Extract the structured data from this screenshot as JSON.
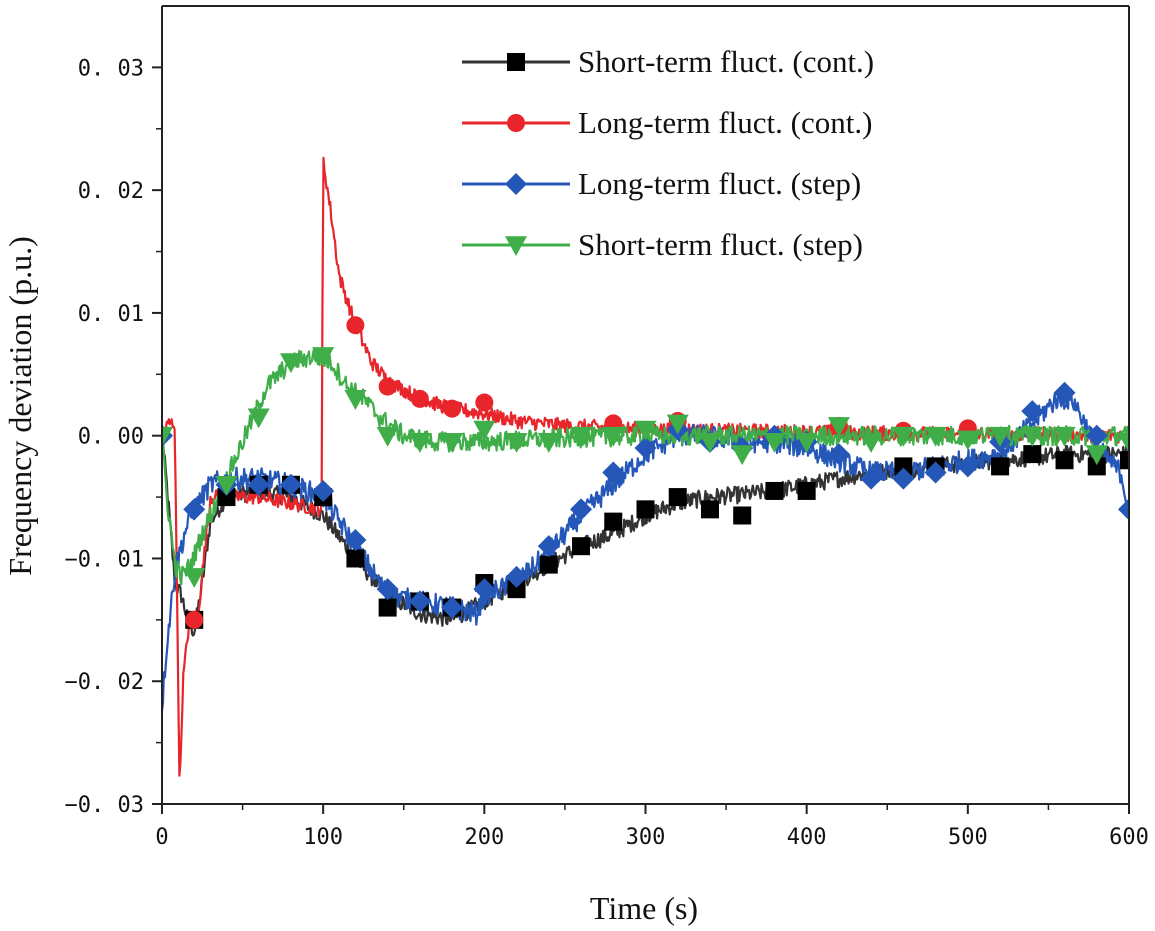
{
  "chart_data": {
    "type": "line",
    "title": "",
    "xlabel": "Time (s)",
    "ylabel": "Frequency deviation (p.u.)",
    "xlim": [
      0,
      600
    ],
    "ylim": [
      -0.03,
      0.035
    ],
    "xticks": [
      0,
      100,
      200,
      300,
      400,
      500,
      600
    ],
    "xtick_labels": [
      "0",
      "100",
      "200",
      "300",
      "400",
      "500",
      "600"
    ],
    "yticks": [
      -0.03,
      -0.02,
      -0.01,
      0.0,
      0.01,
      0.02,
      0.03
    ],
    "ytick_labels": [
      "−0. 03",
      "−0. 02",
      "−0. 01",
      "0. 00",
      "0. 01",
      "0. 02",
      "0. 03"
    ],
    "grid": false,
    "legend_position": "top-right",
    "series": [
      {
        "name": "Short-term fluct. (cont.)",
        "color": "#333333",
        "marker": "square",
        "noise": 0.0007,
        "line": [
          [
            0,
            0
          ],
          [
            3,
            -0.004
          ],
          [
            8,
            -0.012
          ],
          [
            12,
            -0.013
          ],
          [
            16,
            -0.015
          ],
          [
            20,
            -0.016
          ],
          [
            25,
            -0.012
          ],
          [
            30,
            -0.007
          ],
          [
            40,
            -0.005
          ],
          [
            60,
            -0.0045
          ],
          [
            80,
            -0.005
          ],
          [
            100,
            -0.0065
          ],
          [
            120,
            -0.01
          ],
          [
            140,
            -0.013
          ],
          [
            160,
            -0.0145
          ],
          [
            180,
            -0.015
          ],
          [
            200,
            -0.0135
          ],
          [
            220,
            -0.012
          ],
          [
            240,
            -0.0105
          ],
          [
            260,
            -0.009
          ],
          [
            280,
            -0.008
          ],
          [
            300,
            -0.0065
          ],
          [
            320,
            -0.0055
          ],
          [
            340,
            -0.005
          ],
          [
            360,
            -0.0048
          ],
          [
            380,
            -0.0045
          ],
          [
            400,
            -0.004
          ],
          [
            420,
            -0.0035
          ],
          [
            440,
            -0.003
          ],
          [
            460,
            -0.0028
          ],
          [
            480,
            -0.0025
          ],
          [
            500,
            -0.0022
          ],
          [
            520,
            -0.002
          ],
          [
            540,
            -0.0018
          ],
          [
            560,
            -0.0015
          ],
          [
            580,
            -0.0015
          ],
          [
            600,
            -0.0015
          ]
        ],
        "markers": [
          [
            20,
            -0.015
          ],
          [
            40,
            -0.005
          ],
          [
            60,
            -0.004
          ],
          [
            80,
            -0.004
          ],
          [
            100,
            -0.005
          ],
          [
            120,
            -0.01
          ],
          [
            140,
            -0.014
          ],
          [
            160,
            -0.0135
          ],
          [
            180,
            -0.014
          ],
          [
            200,
            -0.012
          ],
          [
            220,
            -0.0125
          ],
          [
            240,
            -0.0105
          ],
          [
            260,
            -0.009
          ],
          [
            280,
            -0.007
          ],
          [
            300,
            -0.006
          ],
          [
            320,
            -0.005
          ],
          [
            340,
            -0.006
          ],
          [
            360,
            -0.0065
          ],
          [
            380,
            -0.0045
          ],
          [
            400,
            -0.0045
          ],
          [
            460,
            -0.0025
          ],
          [
            480,
            -0.0025
          ],
          [
            520,
            -0.0025
          ],
          [
            540,
            -0.0015
          ],
          [
            560,
            -0.002
          ],
          [
            580,
            -0.0025
          ],
          [
            600,
            -0.002
          ]
        ]
      },
      {
        "name": "Long-term fluct. (cont.)",
        "color": "#e8252a",
        "marker": "circle",
        "noise": 0.0006,
        "line": [
          [
            0,
            0
          ],
          [
            4,
            0.001
          ],
          [
            8,
            0.001
          ],
          [
            9,
            -0.01
          ],
          [
            11,
            -0.029
          ],
          [
            13,
            -0.02
          ],
          [
            17,
            -0.015
          ],
          [
            22,
            -0.015
          ],
          [
            26,
            -0.01
          ],
          [
            30,
            -0.005
          ],
          [
            40,
            -0.005
          ],
          [
            60,
            -0.005
          ],
          [
            80,
            -0.0055
          ],
          [
            99,
            -0.006
          ],
          [
            100,
            0.0225
          ],
          [
            105,
            0.018
          ],
          [
            110,
            0.013
          ],
          [
            120,
            0.009
          ],
          [
            130,
            0.006
          ],
          [
            140,
            0.0045
          ],
          [
            160,
            0.003
          ],
          [
            180,
            0.0022
          ],
          [
            200,
            0.0018
          ],
          [
            220,
            0.0012
          ],
          [
            250,
            0.0008
          ],
          [
            300,
            0.0005
          ],
          [
            350,
            0.0004
          ],
          [
            400,
            0.0003
          ],
          [
            450,
            0.0002
          ],
          [
            500,
            0.0001
          ],
          [
            550,
            0.0001
          ],
          [
            600,
            0
          ]
        ],
        "markers": [
          [
            20,
            -0.015
          ],
          [
            120,
            0.009
          ],
          [
            140,
            0.004
          ],
          [
            160,
            0.003
          ],
          [
            180,
            0.0022
          ],
          [
            200,
            0.0027
          ],
          [
            280,
            0.001
          ],
          [
            320,
            0.0012
          ],
          [
            420,
            0.0008
          ],
          [
            460,
            0.0004
          ],
          [
            500,
            0.0006
          ]
        ]
      },
      {
        "name": "Long-term fluct. (step)",
        "color": "#2457b8",
        "marker": "diamond",
        "noise": 0.0009,
        "line": [
          [
            0,
            -0.022
          ],
          [
            3,
            -0.017
          ],
          [
            8,
            -0.011
          ],
          [
            15,
            -0.0075
          ],
          [
            20,
            -0.006
          ],
          [
            30,
            -0.004
          ],
          [
            40,
            -0.0035
          ],
          [
            60,
            -0.0035
          ],
          [
            80,
            -0.004
          ],
          [
            100,
            -0.005
          ],
          [
            120,
            -0.009
          ],
          [
            140,
            -0.013
          ],
          [
            160,
            -0.0135
          ],
          [
            180,
            -0.014
          ],
          [
            195,
            -0.0145
          ],
          [
            200,
            -0.013
          ],
          [
            220,
            -0.012
          ],
          [
            240,
            -0.0095
          ],
          [
            260,
            -0.0065
          ],
          [
            280,
            -0.004
          ],
          [
            300,
            -0.0015
          ],
          [
            320,
            0
          ],
          [
            340,
            0
          ],
          [
            360,
            -0.0005
          ],
          [
            380,
            -0.0005
          ],
          [
            400,
            -0.001
          ],
          [
            420,
            -0.002
          ],
          [
            440,
            -0.003
          ],
          [
            460,
            -0.003
          ],
          [
            480,
            -0.0025
          ],
          [
            500,
            -0.002
          ],
          [
            520,
            -0.0015
          ],
          [
            540,
            0.001
          ],
          [
            555,
            0.003
          ],
          [
            565,
            0.003
          ],
          [
            580,
            -0.001
          ],
          [
            595,
            -0.003
          ],
          [
            600,
            -0.006
          ]
        ],
        "markers": [
          [
            0,
            0
          ],
          [
            20,
            -0.006
          ],
          [
            40,
            -0.004
          ],
          [
            60,
            -0.004
          ],
          [
            80,
            -0.004
          ],
          [
            100,
            -0.0045
          ],
          [
            120,
            -0.0085
          ],
          [
            140,
            -0.0125
          ],
          [
            160,
            -0.0135
          ],
          [
            180,
            -0.014
          ],
          [
            200,
            -0.0125
          ],
          [
            220,
            -0.0115
          ],
          [
            240,
            -0.009
          ],
          [
            260,
            -0.006
          ],
          [
            280,
            -0.003
          ],
          [
            300,
            -0.001
          ],
          [
            320,
            0.0005
          ],
          [
            340,
            -0.0005
          ],
          [
            360,
            -0.001
          ],
          [
            380,
            0
          ],
          [
            400,
            -0.0005
          ],
          [
            420,
            -0.0015
          ],
          [
            440,
            -0.0035
          ],
          [
            460,
            -0.0035
          ],
          [
            480,
            -0.003
          ],
          [
            500,
            -0.0025
          ],
          [
            520,
            -0.0005
          ],
          [
            540,
            0.002
          ],
          [
            560,
            0.0035
          ],
          [
            580,
            0
          ],
          [
            600,
            -0.006
          ]
        ]
      },
      {
        "name": "Short-term fluct. (step)",
        "color": "#3fae49",
        "marker": "triangle-down",
        "noise": 0.0008,
        "line": [
          [
            0,
            0
          ],
          [
            3,
            -0.005
          ],
          [
            8,
            -0.0105
          ],
          [
            12,
            -0.0115
          ],
          [
            18,
            -0.0105
          ],
          [
            25,
            -0.008
          ],
          [
            35,
            -0.005
          ],
          [
            45,
            -0.002
          ],
          [
            55,
            0.001
          ],
          [
            65,
            0.004
          ],
          [
            80,
            0.006
          ],
          [
            95,
            0.0065
          ],
          [
            105,
            0.006
          ],
          [
            115,
            0.004
          ],
          [
            125,
            0.003
          ],
          [
            135,
            0.0015
          ],
          [
            150,
            0
          ],
          [
            170,
            -0.0005
          ],
          [
            200,
            -0.0005
          ],
          [
            250,
            -0.0002
          ],
          [
            300,
            0
          ],
          [
            400,
            0
          ],
          [
            500,
            0
          ],
          [
            600,
            0
          ]
        ],
        "markers": [
          [
            0,
            0
          ],
          [
            20,
            -0.0115
          ],
          [
            40,
            -0.004
          ],
          [
            60,
            0.0015
          ],
          [
            80,
            0.006
          ],
          [
            100,
            0.0065
          ],
          [
            120,
            0.003
          ],
          [
            140,
            0
          ],
          [
            160,
            -0.0005
          ],
          [
            180,
            -0.0005
          ],
          [
            200,
            0.0005
          ],
          [
            220,
            -0.0005
          ],
          [
            240,
            -0.0005
          ],
          [
            260,
            0
          ],
          [
            280,
            0
          ],
          [
            300,
            0.0005
          ],
          [
            320,
            0.001
          ],
          [
            340,
            -0.0005
          ],
          [
            360,
            -0.0015
          ],
          [
            380,
            -0.0005
          ],
          [
            400,
            -0.0005
          ],
          [
            420,
            0.0008
          ],
          [
            440,
            -0.0005
          ],
          [
            460,
            0
          ],
          [
            480,
            0
          ],
          [
            500,
            -0.0003
          ],
          [
            520,
            0
          ],
          [
            540,
            0
          ],
          [
            560,
            0
          ],
          [
            580,
            -0.0015
          ],
          [
            600,
            -0.0005
          ]
        ]
      }
    ]
  }
}
